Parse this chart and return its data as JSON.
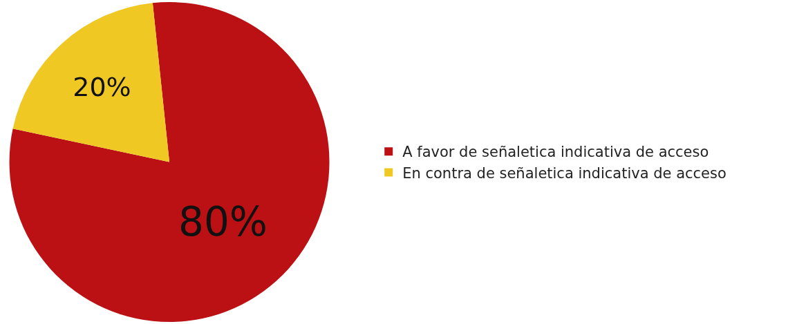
{
  "chart_data": {
    "type": "pie",
    "categories": [
      "A favor de señaletica indicativa de acceso",
      "En contra de señaletica indicativa de acceso"
    ],
    "values": [
      80,
      20
    ],
    "colors": [
      "#bb1114",
      "#f0c823"
    ],
    "value_labels": [
      "80%",
      "20%"
    ],
    "legend": "right"
  }
}
